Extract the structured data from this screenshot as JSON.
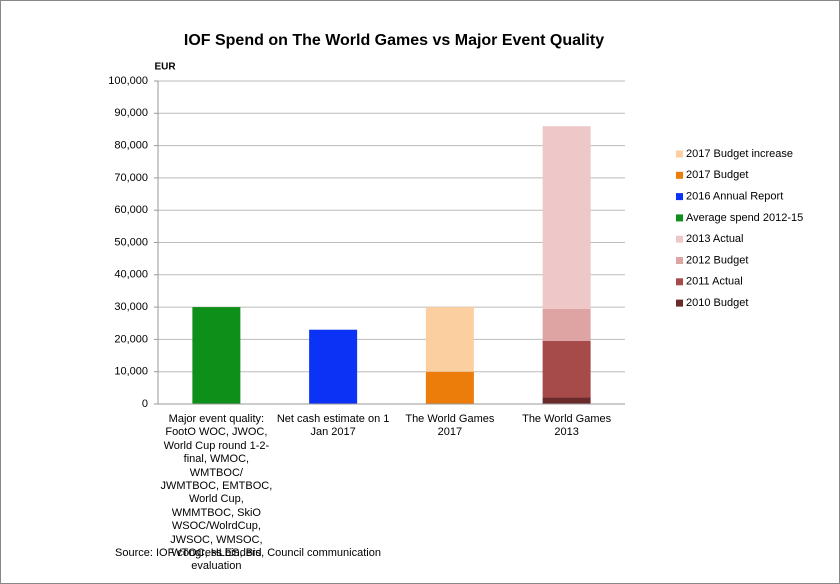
{
  "chart_data": {
    "type": "stacked_bar",
    "title": "IOF Spend on The World Games vs Major Event Quality",
    "y_axis_label": "EUR",
    "source": "Source: IOF congress binders, Council communication",
    "categories": [
      "Major event quality: FootO WOC, JWOC, World Cup round 1-2-final, WMOC, WMTBOC/ JWMTBOC, EMTBOC, World Cup, WMMTBOC, SkiO WSOC/WolrdCup, JWSOC, WMSOC, WTOC, HLES, Bid evaluation",
      "Net cash estimate on 1 Jan 2017",
      "The World Games 2017",
      "The World Games 2013"
    ],
    "series": [
      {
        "name": "2010 Budget",
        "color": "#6b2a2a",
        "values": [
          null,
          null,
          null,
          2000
        ]
      },
      {
        "name": "2011 Actual",
        "color": "#a64a4a",
        "values": [
          null,
          null,
          null,
          17500
        ]
      },
      {
        "name": "2012 Budget",
        "color": "#dea3a3",
        "values": [
          null,
          null,
          null,
          10000
        ]
      },
      {
        "name": "2013 Actual",
        "color": "#eec8c8",
        "values": [
          null,
          null,
          null,
          56500
        ]
      },
      {
        "name": "Average spend 2012-15",
        "color": "#0d8f1a",
        "values": [
          30000,
          null,
          null,
          null
        ]
      },
      {
        "name": "2016 Annual Report",
        "color": "#0b32f5",
        "values": [
          null,
          23000,
          null,
          null
        ]
      },
      {
        "name": "2017 Budget",
        "color": "#ec7d0a",
        "values": [
          null,
          null,
          10000,
          null
        ]
      },
      {
        "name": "2017 Budget increase",
        "color": "#fbcfa0",
        "values": [
          null,
          null,
          20000,
          null
        ]
      }
    ],
    "ylim": [
      0,
      100000
    ],
    "yticks": [
      0,
      {
        "value": 10000,
        "label": "10,000"
      },
      {
        "value": 20000,
        "label": "20,000"
      },
      {
        "value": 30000,
        "label": "30,000"
      },
      {
        "value": 40000,
        "label": "40,000"
      },
      {
        "value": 50000,
        "label": "50,000"
      },
      {
        "value": 60000,
        "label": "60,000"
      },
      {
        "value": 70000,
        "label": "70,000"
      },
      {
        "value": 80000,
        "label": "80,000"
      },
      {
        "value": 90000,
        "label": "90,000"
      },
      {
        "value": 100000,
        "label": "100,000"
      }
    ],
    "grid": true,
    "legend": "right"
  }
}
